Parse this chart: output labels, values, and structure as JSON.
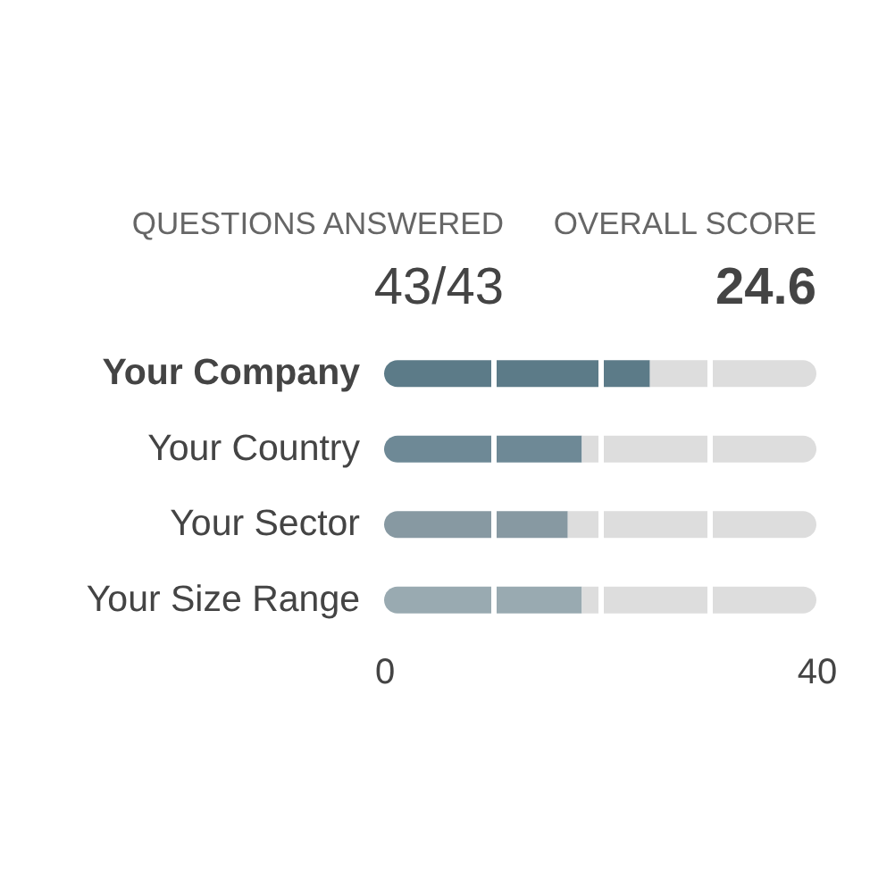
{
  "chart_data": {
    "type": "bar",
    "orientation": "horizontal",
    "stacked": true,
    "categories": [
      "Your Company",
      "Your Country",
      "Your Sector",
      "Your Size Range"
    ],
    "series": [
      {
        "colors": [
          "#5c7b88",
          "#6e8996",
          "#8799a2",
          "#99aab1"
        ],
        "values": [
          24.6,
          18.3,
          17.0,
          18.3
        ]
      },
      {
        "color": "#dddddd",
        "values": [
          15.4,
          21.7,
          23.0,
          21.7
        ]
      }
    ],
    "xlim": [
      0,
      40
    ],
    "xticks": [
      0,
      {
        "value": 10,
        "label": null
      },
      {
        "value": 20,
        "label": null
      },
      {
        "value": 30,
        "label": null
      },
      40
    ],
    "grid": "x",
    "annotations": [
      "QUESTIONS ANSWERED",
      "43/43",
      "OVERALL SCORE",
      "24.6"
    ]
  }
}
